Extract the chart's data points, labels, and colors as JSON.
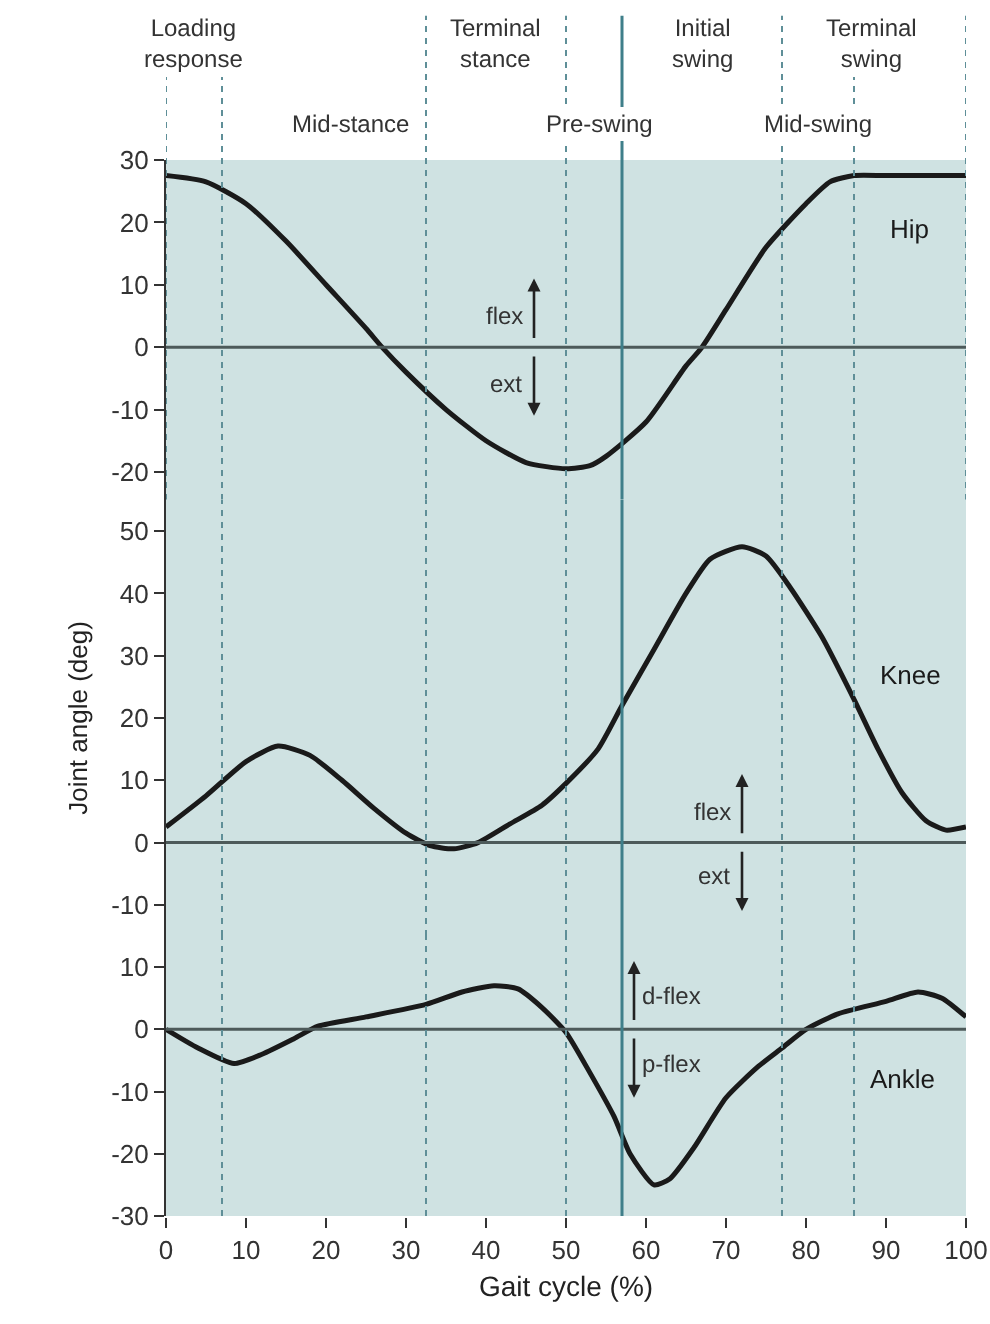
{
  "chart_data": [
    {
      "type": "line",
      "tick_labels": "y",
      "marker": "none",
      "line_style": "solid",
      "xlim": [
        0,
        100
      ],
      "xticks": [
        0,
        10,
        20,
        30,
        40,
        50,
        60,
        70,
        80,
        90,
        100
      ],
      "ylim": [
        -24.5,
        30
      ],
      "yticks": [
        -20,
        -10,
        0,
        10,
        20,
        30
      ],
      "x": [
        0,
        5,
        10,
        15,
        20,
        25,
        27,
        30,
        35,
        40,
        45,
        50,
        53,
        55,
        60,
        65,
        67,
        70,
        75,
        80,
        83,
        86,
        90,
        100
      ],
      "series": [
        {
          "name": "Hip",
          "color": "#1a1a1a",
          "values": [
            27.5,
            26.5,
            23,
            17,
            10,
            3,
            0,
            -4,
            -10,
            -15,
            -18.5,
            -19.5,
            -19,
            -17.5,
            -12,
            -3,
            0,
            6,
            16,
            23,
            26.5,
            27.5,
            27.5,
            27.5
          ]
        }
      ],
      "annotations": [
        "Loading response",
        "Mid-stance",
        "Terminal stance",
        "Pre-swing",
        "Initial swing",
        "Mid-swing",
        "Terminal swing",
        "flex",
        "ext"
      ],
      "ref_lines": [
        {
          "axis": "y",
          "value": 0,
          "color": "#4d5a5a",
          "line_style": "solid"
        },
        {
          "axis": "x",
          "value": 0,
          "color": "#5f8f98",
          "line_style": "dotted"
        },
        {
          "axis": "x",
          "value": 7,
          "color": "#5f8f98",
          "line_style": "dotted"
        },
        {
          "axis": "x",
          "value": 32.5,
          "color": "#5f8f98",
          "line_style": "dotted"
        },
        {
          "axis": "x",
          "value": 50,
          "color": "#5f8f98",
          "line_style": "dotted"
        },
        {
          "axis": "x",
          "value": 57,
          "color": "#3f7f8a",
          "line_style": "solid"
        },
        {
          "axis": "x",
          "value": 77,
          "color": "#5f8f98",
          "line_style": "dotted"
        },
        {
          "axis": "x",
          "value": 86,
          "color": "#5f8f98",
          "line_style": "dotted"
        },
        {
          "axis": "x",
          "value": 100,
          "color": "#5f8f98",
          "line_style": "dotted"
        }
      ]
    },
    {
      "type": "line",
      "tick_labels": "y",
      "marker": "none",
      "line_style": "solid",
      "ylabel": "Joint angle (deg)",
      "xlim": [
        0,
        100
      ],
      "xticks": [
        0,
        10,
        20,
        30,
        40,
        50,
        60,
        70,
        80,
        90,
        100
      ],
      "ylim": [
        -15,
        55
      ],
      "yticks": [
        -10,
        0,
        10,
        20,
        30,
        40,
        50
      ],
      "x": [
        0,
        5,
        10,
        14,
        18,
        22,
        26,
        30,
        33,
        36,
        39,
        43,
        47,
        50,
        54,
        57,
        61,
        65,
        68,
        72,
        75,
        78,
        82,
        86,
        89,
        92,
        95,
        97.5,
        100
      ],
      "series": [
        {
          "name": "Knee",
          "color": "#1a1a1a",
          "values": [
            2.5,
            7.5,
            13,
            15.5,
            14,
            10,
            5.5,
            1.5,
            -0.5,
            -1,
            0,
            3,
            6,
            9.5,
            15,
            22,
            31,
            40,
            45.5,
            47.5,
            46,
            41,
            33,
            23,
            15,
            8,
            3.5,
            2,
            2.5
          ]
        }
      ],
      "annotations": [
        "flex",
        "ext"
      ],
      "ref_lines": [
        {
          "axis": "y",
          "value": 0,
          "color": "#4d5a5a",
          "line_style": "solid"
        },
        {
          "axis": "x",
          "value": 7,
          "color": "#5f8f98",
          "line_style": "dotted"
        },
        {
          "axis": "x",
          "value": 32.5,
          "color": "#5f8f98",
          "line_style": "dotted"
        },
        {
          "axis": "x",
          "value": 50,
          "color": "#5f8f98",
          "line_style": "dotted"
        },
        {
          "axis": "x",
          "value": 57,
          "color": "#3f7f8a",
          "line_style": "solid"
        },
        {
          "axis": "x",
          "value": 77,
          "color": "#5f8f98",
          "line_style": "dotted"
        },
        {
          "axis": "x",
          "value": 86,
          "color": "#5f8f98",
          "line_style": "dotted"
        }
      ]
    },
    {
      "type": "line",
      "marker": "none",
      "line_style": "solid",
      "xlabel": "Gait cycle (%)",
      "xlim": [
        0,
        100
      ],
      "xticks": [
        0,
        10,
        20,
        30,
        40,
        50,
        60,
        70,
        80,
        90,
        100
      ],
      "ylim": [
        -30,
        15
      ],
      "yticks": [
        -30,
        -20,
        -10,
        0,
        10
      ],
      "x": [
        0,
        4,
        8.5,
        12,
        16,
        19,
        25,
        32.5,
        37,
        41,
        44,
        47,
        50,
        53,
        56,
        58,
        61,
        63,
        66,
        70,
        74,
        77,
        80,
        84,
        90,
        94,
        97,
        100
      ],
      "series": [
        {
          "name": "Ankle",
          "color": "#1a1a1a",
          "values": [
            0,
            -3,
            -5.5,
            -4,
            -1.5,
            0.5,
            2,
            4,
            6,
            7,
            6.5,
            3.5,
            -0.5,
            -7,
            -14,
            -20,
            -25,
            -24,
            -19,
            -11,
            -6,
            -3,
            0,
            2.5,
            4.5,
            6,
            5,
            2
          ]
        }
      ],
      "annotations": [
        "d-flex",
        "p-flex"
      ],
      "ref_lines": [
        {
          "axis": "y",
          "value": 0,
          "color": "#4d5a5a",
          "line_style": "solid"
        },
        {
          "axis": "x",
          "value": 7,
          "color": "#5f8f98",
          "line_style": "dotted"
        },
        {
          "axis": "x",
          "value": 32.5,
          "color": "#5f8f98",
          "line_style": "dotted"
        },
        {
          "axis": "x",
          "value": 50,
          "color": "#5f8f98",
          "line_style": "dotted"
        },
        {
          "axis": "x",
          "value": 57,
          "color": "#3f7f8a",
          "line_style": "solid"
        },
        {
          "axis": "x",
          "value": 77,
          "color": "#5f8f98",
          "line_style": "dotted"
        },
        {
          "axis": "x",
          "value": 86,
          "color": "#5f8f98",
          "line_style": "dotted"
        }
      ]
    }
  ]
}
